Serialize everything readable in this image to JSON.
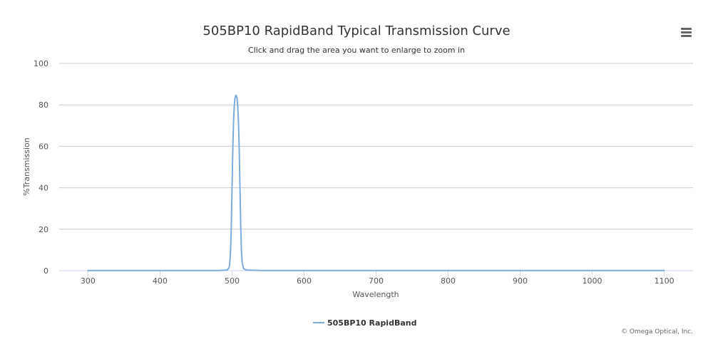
{
  "chart_data": {
    "type": "line",
    "title": "505BP10 RapidBand Typical Transmission Curve",
    "subtitle": "Click and drag the area you want to enlarge to zoom in",
    "xlabel": "Wavelength",
    "ylabel": "%Transmission",
    "xlim": [
      260,
      1140
    ],
    "ylim": [
      0,
      100
    ],
    "x_ticks": [
      300,
      400,
      500,
      600,
      700,
      800,
      900,
      1000,
      1100
    ],
    "y_ticks": [
      0,
      20,
      40,
      60,
      80,
      100
    ],
    "grid": "horizontal",
    "legend_position": "bottom-center",
    "series": [
      {
        "name": "505BP10 RapidBand",
        "color": "#7cabdc",
        "x": [
          300,
          480,
          490,
          494,
          496,
          497,
          498,
          499,
          500,
          501,
          502,
          503,
          504,
          505,
          506,
          507,
          508,
          509,
          510,
          511,
          512,
          513,
          514,
          516,
          520,
          540,
          600,
          700,
          800,
          900,
          1000,
          1100
        ],
        "y": [
          0.1,
          0.1,
          0.2,
          0.5,
          1.5,
          4,
          10,
          22,
          40,
          58,
          71,
          79,
          83,
          84.5,
          84.5,
          83,
          79,
          71,
          58,
          40,
          22,
          10,
          4,
          1,
          0.3,
          0.1,
          0.1,
          0.1,
          0.1,
          0.1,
          0.1,
          0.1
        ]
      }
    ]
  },
  "credits": "© Omega Optical, Inc.",
  "menu_icon": "hamburger-menu-icon"
}
